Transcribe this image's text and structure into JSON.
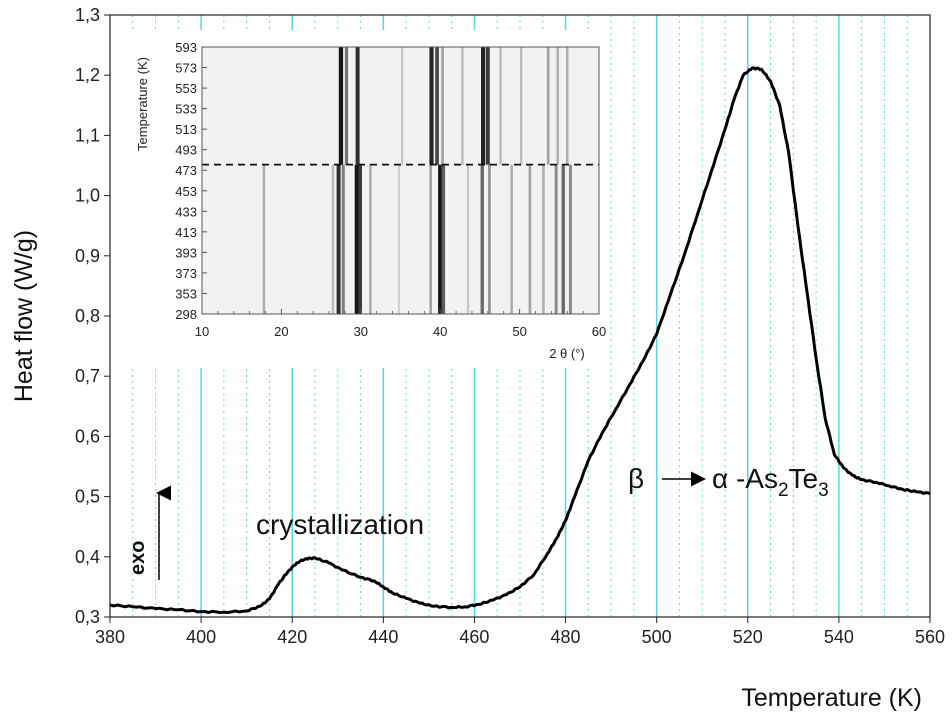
{
  "chart_data": [
    {
      "type": "line",
      "title": "",
      "xlabel": "Temperature (K)",
      "ylabel": "Heat flow (W/g)",
      "xlim": [
        380,
        560
      ],
      "ylim": [
        0.3,
        1.3
      ],
      "x_ticks": [
        "380",
        "400",
        "420",
        "440",
        "460",
        "480",
        "500",
        "520",
        "540",
        "560"
      ],
      "y_ticks": [
        "0,3",
        "0,4",
        "0,5",
        "0,6",
        "0,7",
        "0,8",
        "0,9",
        "1,0",
        "1,1",
        "1,2",
        "1,3"
      ],
      "grid": "vertical",
      "grid_color": "#5fd6e6",
      "line_color": "#000000",
      "series": [
        {
          "x": [
            380,
            385,
            390,
            395,
            400,
            405,
            410,
            413,
            415,
            417,
            419,
            421,
            423,
            425,
            428,
            431,
            435,
            438,
            440,
            442,
            445,
            448,
            451,
            455,
            458,
            461,
            464,
            467,
            470,
            473,
            476,
            478,
            480,
            482,
            485,
            488,
            491,
            494,
            497,
            500,
            503,
            506,
            509,
            512,
            515,
            517,
            519,
            521,
            523,
            525,
            527,
            529,
            531,
            533,
            535,
            537,
            539,
            541,
            543,
            545,
            548,
            551,
            554,
            557,
            560
          ],
          "y": [
            0.32,
            0.317,
            0.314,
            0.312,
            0.309,
            0.308,
            0.31,
            0.318,
            0.33,
            0.355,
            0.375,
            0.39,
            0.397,
            0.398,
            0.39,
            0.378,
            0.366,
            0.36,
            0.35,
            0.34,
            0.331,
            0.323,
            0.318,
            0.316,
            0.317,
            0.321,
            0.328,
            0.337,
            0.35,
            0.37,
            0.405,
            0.43,
            0.46,
            0.5,
            0.56,
            0.605,
            0.645,
            0.685,
            0.725,
            0.77,
            0.835,
            0.9,
            0.97,
            1.04,
            1.11,
            1.16,
            1.2,
            1.212,
            1.21,
            1.19,
            1.15,
            1.07,
            0.95,
            0.84,
            0.73,
            0.63,
            0.57,
            0.548,
            0.535,
            0.528,
            0.524,
            0.518,
            0.512,
            0.508,
            0.505
          ]
        }
      ],
      "annotations": [
        {
          "text": "crystallization"
        },
        {
          "text": "exo"
        }
      ]
    },
    {
      "type": "heatmap",
      "xlabel": "2 θ (°)",
      "ylabel": "Temperature (K)",
      "xlim": [
        10,
        60
      ],
      "ylim": [
        298,
        593
      ],
      "x_ticks": [
        "10",
        "20",
        "30",
        "40",
        "50",
        "60"
      ],
      "y_ticks": [
        "298",
        "353",
        "373",
        "393",
        "413",
        "433",
        "453",
        "473",
        "493",
        "513",
        "533",
        "553",
        "573",
        "593"
      ],
      "dashed_line_temperature": 463,
      "lines_below": [
        {
          "t": 17.8,
          "i": 0.35
        },
        {
          "t": 26.5,
          "i": 0.3
        },
        {
          "t": 27.2,
          "i": 0.9
        },
        {
          "t": 27.8,
          "i": 0.55
        },
        {
          "t": 29.5,
          "i": 1.0
        },
        {
          "t": 29.9,
          "i": 0.85
        },
        {
          "t": 31.2,
          "i": 0.35
        },
        {
          "t": 34.8,
          "i": 0.2
        },
        {
          "t": 38.8,
          "i": 0.4
        },
        {
          "t": 40.0,
          "i": 1.0
        },
        {
          "t": 40.4,
          "i": 0.7
        },
        {
          "t": 43.5,
          "i": 0.25
        },
        {
          "t": 45.3,
          "i": 0.65
        },
        {
          "t": 46.2,
          "i": 0.45
        },
        {
          "t": 49.0,
          "i": 0.35
        },
        {
          "t": 51.3,
          "i": 0.4
        },
        {
          "t": 53.0,
          "i": 0.35
        },
        {
          "t": 54.6,
          "i": 0.5
        },
        {
          "t": 55.5,
          "i": 0.65
        },
        {
          "t": 56.4,
          "i": 0.5
        }
      ],
      "lines_above": [
        {
          "t": 27.5,
          "i": 1.0
        },
        {
          "t": 28.2,
          "i": 0.6
        },
        {
          "t": 29.6,
          "i": 0.9
        },
        {
          "t": 35.2,
          "i": 0.25
        },
        {
          "t": 38.9,
          "i": 0.95
        },
        {
          "t": 39.6,
          "i": 0.8
        },
        {
          "t": 40.3,
          "i": 0.4
        },
        {
          "t": 42.8,
          "i": 0.3
        },
        {
          "t": 45.4,
          "i": 0.95
        },
        {
          "t": 46.0,
          "i": 0.85
        },
        {
          "t": 47.6,
          "i": 0.3
        },
        {
          "t": 50.2,
          "i": 0.3
        },
        {
          "t": 53.6,
          "i": 0.4
        },
        {
          "t": 54.8,
          "i": 0.35
        },
        {
          "t": 56.0,
          "i": 0.35
        }
      ]
    }
  ]
}
